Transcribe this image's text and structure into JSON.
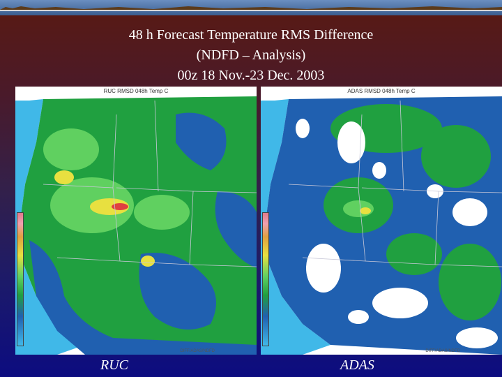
{
  "slide": {
    "title_line1": "48 h Forecast Temperature RMS Difference",
    "title_line2": "(NDFD – Analysis)",
    "title_line3": "00z 18 Nov.-23 Dec. 2003"
  },
  "panels": [
    {
      "header": "RUC RMSD 048h Temp C",
      "footer": "DIFF/ADAS/NDFD",
      "caption": "RUC",
      "colorbar": {
        "top_color": "#e07a8a",
        "bottom_color": "#40b8e8"
      }
    },
    {
      "header": "ADAS RMSD 048h Temp C",
      "footer": "DIFF/ADAS/NDFD",
      "caption": "ADAS",
      "colorbar": {
        "top_color": "#e07a8a",
        "bottom_color": "#40b8e8"
      }
    }
  ],
  "colors": {
    "ocean_light": "#40b8e8",
    "land_dark": "#2060b0",
    "land_green": "#20a040",
    "land_light_green": "#60d060",
    "land_yellow": "#e8e040",
    "land_red": "#e04040"
  }
}
